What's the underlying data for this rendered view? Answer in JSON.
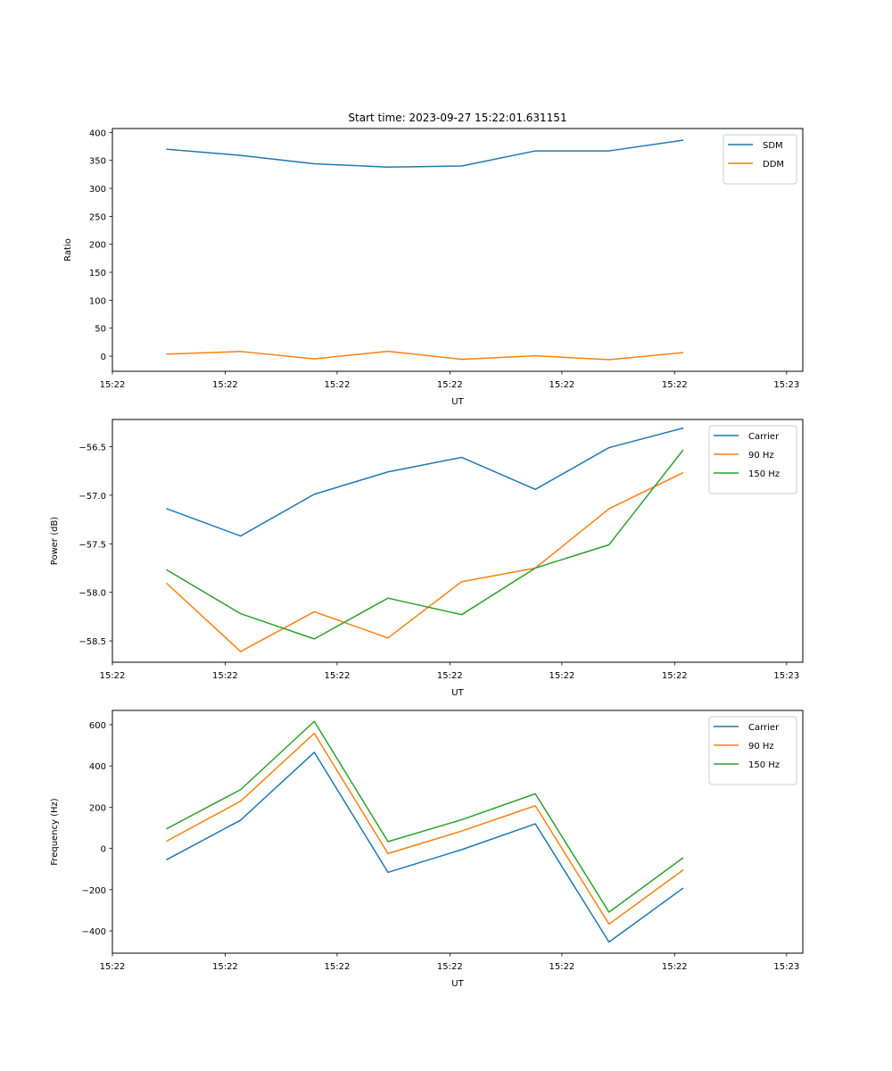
{
  "figure": {
    "title": "Start time: 2023-09-27 15:22:01.631151"
  },
  "chart_data": [
    {
      "type": "line",
      "title": "Start time: 2023-09-27 15:22:01.631151",
      "xlabel": "UT",
      "ylabel": "Ratio",
      "x_tick_labels": [
        "15:22",
        "15:22",
        "15:22",
        "15:22",
        "15:22",
        "15:22",
        "15:23"
      ],
      "y_ticks": [
        0,
        50,
        100,
        150,
        200,
        250,
        300,
        350,
        400
      ],
      "y_tick_labels": [
        "0",
        "50",
        "100",
        "150",
        "200",
        "250",
        "300",
        "350",
        "400"
      ],
      "ylim": [
        -27,
        407
      ],
      "x_index_range": [
        -0.74,
        8.63
      ],
      "x_tick_positions": [
        -0.74,
        0.79,
        2.31,
        3.84,
        5.36,
        6.89,
        8.41
      ],
      "legend": "top-right",
      "grid": false,
      "series": [
        {
          "name": "SDM",
          "color": "#1f77b4",
          "values": [
            370,
            359,
            344,
            338,
            340,
            367,
            367,
            386
          ]
        },
        {
          "name": "DDM",
          "color": "#ff7f0e",
          "values": [
            3.7,
            8.4,
            -4.8,
            8.7,
            -5.6,
            0.8,
            -6.3,
            6.3
          ]
        }
      ]
    },
    {
      "type": "line",
      "title": "",
      "xlabel": "UT",
      "ylabel": "Power (dB)",
      "x_tick_labels": [
        "15:22",
        "15:22",
        "15:22",
        "15:22",
        "15:22",
        "15:22",
        "15:23"
      ],
      "y_ticks": [
        -58.5,
        -58.0,
        -57.5,
        -57.0,
        -56.5
      ],
      "y_tick_labels": [
        "−58.5",
        "−58.0",
        "−57.5",
        "−57.0",
        "−56.5"
      ],
      "ylim": [
        -58.72,
        -56.22
      ],
      "x_index_range": [
        -0.74,
        8.63
      ],
      "x_tick_positions": [
        -0.74,
        0.79,
        2.31,
        3.84,
        5.36,
        6.89,
        8.41
      ],
      "legend": "top-right",
      "grid": false,
      "series": [
        {
          "name": "Carrier",
          "color": "#1f77b4",
          "values": [
            -57.14,
            -57.42,
            -56.99,
            -56.76,
            -56.61,
            -56.94,
            -56.51,
            -56.31
          ]
        },
        {
          "name": "90 Hz",
          "color": "#ff7f0e",
          "values": [
            -57.91,
            -58.61,
            -58.2,
            -58.47,
            -57.89,
            -57.75,
            -57.14,
            -56.77
          ]
        },
        {
          "name": "150 Hz",
          "color": "#2ca02c",
          "values": [
            -57.77,
            -58.22,
            -58.48,
            -58.06,
            -58.23,
            -57.75,
            -57.51,
            -56.54
          ]
        }
      ]
    },
    {
      "type": "line",
      "title": "",
      "xlabel": "UT",
      "ylabel": "Frequency (Hz)",
      "x_tick_labels": [
        "15:22",
        "15:22",
        "15:22",
        "15:22",
        "15:22",
        "15:22",
        "15:23"
      ],
      "y_ticks": [
        -400,
        -200,
        0,
        200,
        400,
        600
      ],
      "y_tick_labels": [
        "−400",
        "−200",
        "0",
        "200",
        "400",
        "600"
      ],
      "ylim": [
        -508,
        669
      ],
      "x_index_range": [
        -0.74,
        8.63
      ],
      "x_tick_positions": [
        -0.74,
        0.79,
        2.31,
        3.84,
        5.36,
        6.89,
        8.41
      ],
      "legend": "top-right",
      "grid": false,
      "series": [
        {
          "name": "Carrier",
          "color": "#1f77b4",
          "values": [
            -54,
            137,
            466,
            -116,
            -6,
            119,
            -454,
            -194
          ]
        },
        {
          "name": "90 Hz",
          "color": "#ff7f0e",
          "values": [
            36,
            229,
            558,
            -25,
            84,
            207,
            -367,
            -106
          ]
        },
        {
          "name": "150 Hz",
          "color": "#2ca02c",
          "values": [
            96,
            285,
            616,
            33,
            139,
            265,
            -309,
            -47
          ]
        }
      ]
    }
  ]
}
